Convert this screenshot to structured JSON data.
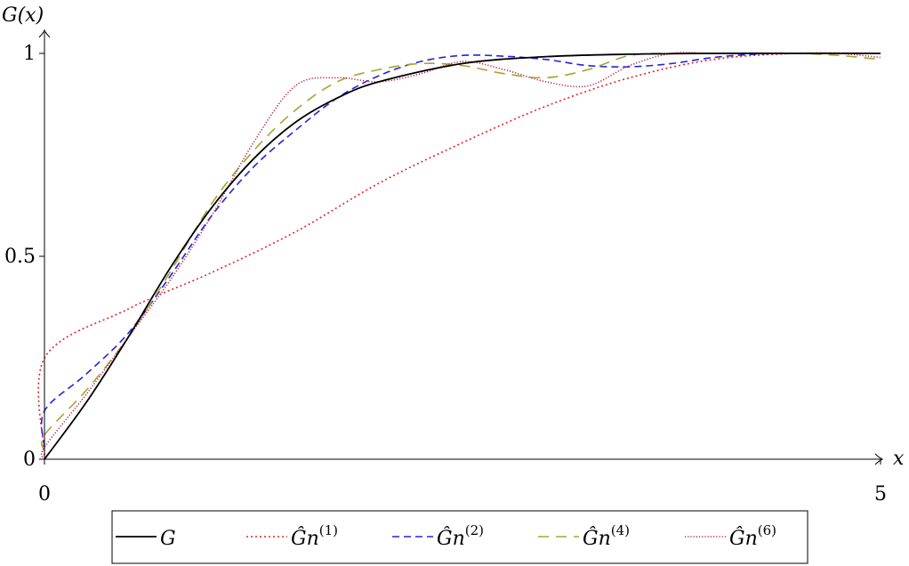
{
  "chart_data": {
    "type": "line",
    "xlabel": "x",
    "ylabel": "G(x)",
    "xlim": [
      0,
      5
    ],
    "ylim": [
      0,
      1
    ],
    "x_ticks": [
      "0",
      "5"
    ],
    "y_ticks": [
      "0",
      "0.5",
      "1"
    ],
    "legend_position": "bottom",
    "grid": false,
    "series": [
      {
        "name": "G",
        "legend_base": "G",
        "legend_sup": "",
        "color": "#000000",
        "style": "solid",
        "x": [
          0,
          0.25,
          0.5,
          0.75,
          1.0,
          1.25,
          1.5,
          1.75,
          2.0,
          2.5,
          3.0,
          3.5,
          4.0,
          4.5,
          5.0
        ],
        "y": [
          0,
          0.14,
          0.3,
          0.47,
          0.62,
          0.74,
          0.83,
          0.89,
          0.93,
          0.975,
          0.992,
          0.998,
          1.0,
          1.0,
          1.0
        ]
      },
      {
        "name": "Ĝn(1)",
        "legend_base": "Ĝn",
        "legend_sup": "(1)",
        "color": "#e8202a",
        "style": "dotted",
        "x": [
          0,
          0.001,
          0.5,
          1.0,
          1.5,
          2.0,
          2.5,
          3.0,
          3.5,
          4.0,
          4.5,
          5.0
        ],
        "y": [
          0.01,
          0.25,
          0.37,
          0.46,
          0.56,
          0.68,
          0.78,
          0.87,
          0.94,
          0.985,
          1.0,
          1.0
        ]
      },
      {
        "name": "Ĝn(2)",
        "legend_base": "Ĝn",
        "legend_sup": "(2)",
        "color": "#2323e0",
        "style": "dashed",
        "x": [
          0,
          0.001,
          0.25,
          0.5,
          0.75,
          1.0,
          1.25,
          1.5,
          1.75,
          2.0,
          2.25,
          2.5,
          2.75,
          3.0,
          3.25,
          3.5,
          3.75,
          4.0,
          4.25,
          4.5,
          5.0
        ],
        "y": [
          0.03,
          0.12,
          0.21,
          0.31,
          0.45,
          0.6,
          0.72,
          0.81,
          0.89,
          0.945,
          0.98,
          0.995,
          0.993,
          0.985,
          0.97,
          0.967,
          0.975,
          0.99,
          0.998,
          1.0,
          1.0
        ]
      },
      {
        "name": "Ĝn(4)",
        "legend_base": "Ĝn",
        "legend_sup": "(4)",
        "color": "#a5a534",
        "style": "longdash",
        "x": [
          0,
          0.001,
          0.25,
          0.5,
          0.75,
          1.0,
          1.25,
          1.5,
          1.75,
          2.0,
          2.25,
          2.5,
          2.75,
          3.0,
          3.25,
          3.5,
          3.75,
          4.0,
          4.25,
          4.5,
          4.75,
          5.0
        ],
        "y": [
          0.02,
          0.06,
          0.17,
          0.3,
          0.46,
          0.63,
          0.76,
          0.86,
          0.93,
          0.96,
          0.975,
          0.97,
          0.95,
          0.94,
          0.96,
          0.995,
          1.0,
          1.0,
          1.0,
          1.0,
          0.995,
          0.985
        ]
      },
      {
        "name": "Ĝn(6)",
        "legend_base": "Ĝn",
        "legend_sup": "(6)",
        "color": "#b52848",
        "style": "fine-dotted",
        "x": [
          0,
          0.001,
          0.25,
          0.5,
          0.75,
          1.0,
          1.25,
          1.5,
          1.75,
          2.0,
          2.25,
          2.5,
          2.75,
          3.0,
          3.25,
          3.5,
          3.75,
          4.0,
          4.25,
          4.5,
          4.75,
          5.0
        ],
        "y": [
          0.0,
          0.03,
          0.16,
          0.3,
          0.44,
          0.6,
          0.78,
          0.92,
          0.94,
          0.93,
          0.95,
          0.98,
          0.96,
          0.93,
          0.92,
          0.97,
          1.0,
          1.0,
          1.0,
          1.0,
          1.0,
          0.99
        ]
      }
    ]
  }
}
